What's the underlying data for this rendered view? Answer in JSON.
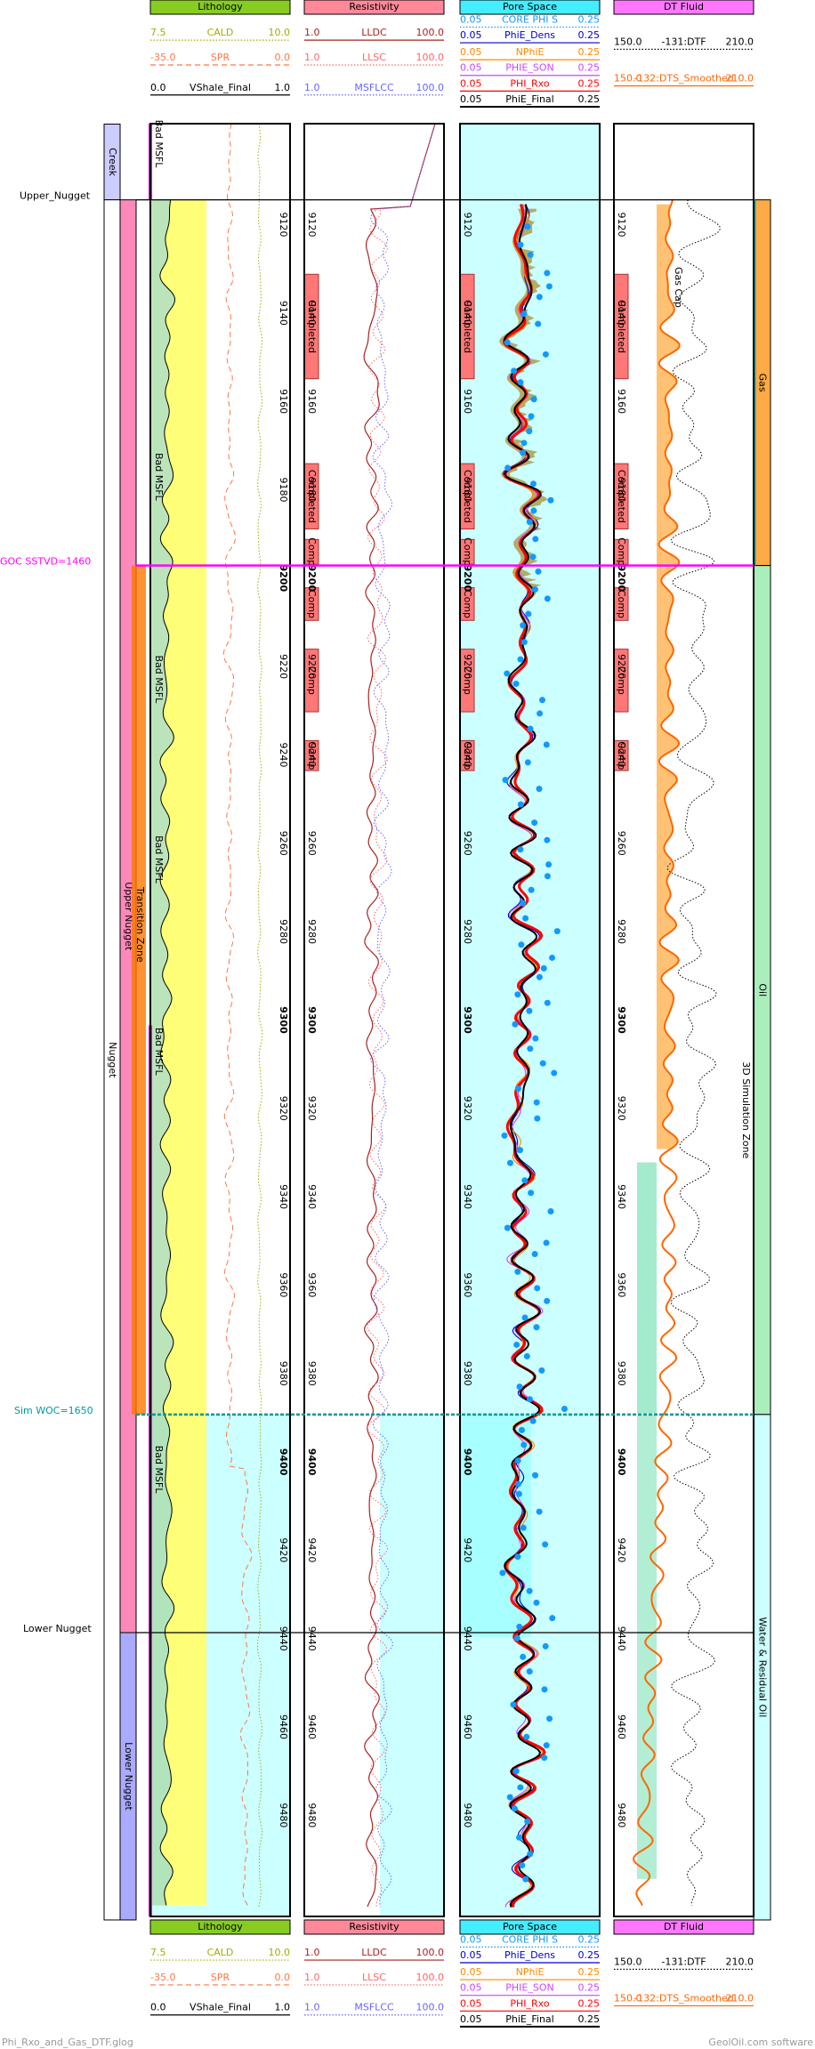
{
  "tracks": [
    {
      "title": "Lithology",
      "color": "#88cc22",
      "curves": [
        {
          "min": "7.5",
          "name": "CALD",
          "max": "10.0",
          "color": "#aaaa00",
          "style": "dotted"
        },
        {
          "min": "-35.0",
          "name": "SPR",
          "max": "0.0",
          "color": "#ff7744",
          "style": "dashed"
        },
        {
          "min": "0.0",
          "name": "VShale_Final",
          "max": "1.0",
          "color": "#000000",
          "style": "solid"
        }
      ]
    },
    {
      "title": "Resistivity",
      "color": "#ff8899",
      "curves": [
        {
          "min": "1.0",
          "name": "LLDC",
          "max": "100.0",
          "color": "#aa2222",
          "style": "solid"
        },
        {
          "min": "1.0",
          "name": "LLSC",
          "max": "100.0",
          "color": "#ff6666",
          "style": "dotted"
        },
        {
          "min": "1.0",
          "name": "MSFLCC",
          "max": "100.0",
          "color": "#6666ff",
          "style": "dotted"
        }
      ]
    },
    {
      "title": "Pore Space",
      "color": "#44eeff",
      "curves": [
        {
          "min": "0.05",
          "name": "CORE PHI S",
          "max": "0.25",
          "color": "#1199ff",
          "style": "dotted"
        },
        {
          "min": "0.05",
          "name": "PhiE_Dens",
          "max": "0.25",
          "color": "#0000cc",
          "style": "solid"
        },
        {
          "min": "0.05",
          "name": "NPhiE",
          "max": "0.25",
          "color": "#ff8800",
          "style": "solid"
        },
        {
          "min": "0.05",
          "name": "PHIE_SON",
          "max": "0.25",
          "color": "#cc44ff",
          "style": "solid"
        },
        {
          "min": "0.05",
          "name": "PHI_Rxo",
          "max": "0.25",
          "color": "#ff0000",
          "style": "solid"
        },
        {
          "min": "0.05",
          "name": "PhiE_Final",
          "max": "0.25",
          "color": "#000000",
          "style": "solid"
        }
      ]
    },
    {
      "title": "DT Fluid",
      "color": "#ff77ff",
      "curves": [
        {
          "min": "150.0",
          "name": "-131:DTF",
          "max": "210.0",
          "color": "#000000",
          "style": "dotted"
        },
        {
          "min": "150.0",
          "name": "-132:DTS_Smoothed",
          "max": "210.0",
          "color": "#ff6600",
          "style": "solid"
        }
      ]
    }
  ],
  "depths": [
    9120,
    9140,
    9160,
    9180,
    9200,
    9220,
    9240,
    9260,
    9280,
    9300,
    9320,
    9340,
    9360,
    9380,
    9400,
    9420,
    9440,
    9460,
    9480
  ],
  "zones_left": [
    "Creek",
    "Nugget"
  ],
  "zones_sub": [
    "Upper Nugget",
    "Lower Nugget"
  ],
  "zones_right": [
    "Gas",
    "Oil",
    "Water & Residual Oil"
  ],
  "markers": [
    "Upper_Nugget",
    "GOC SSTVD=1460",
    "Sim WOC=1650",
    "Lower Nugget"
  ],
  "completions": [
    "Completed",
    "Completed",
    "Comp",
    "Comp",
    "Comp",
    "Comp"
  ],
  "lithology_notes": [
    "Bad MSFL",
    "Bad MSFL",
    "Bad MSFL",
    "Bad MSFL",
    "Bad MSFL",
    "Transition Zone",
    "Bad MSFL"
  ],
  "dt_note": "Gas Cap",
  "sim_zone": "3D Simulation Zone",
  "footer": {
    "file": "Phi_Rxo_and_Gas_DTF.glog",
    "brand": "GeolOil.com software"
  }
}
